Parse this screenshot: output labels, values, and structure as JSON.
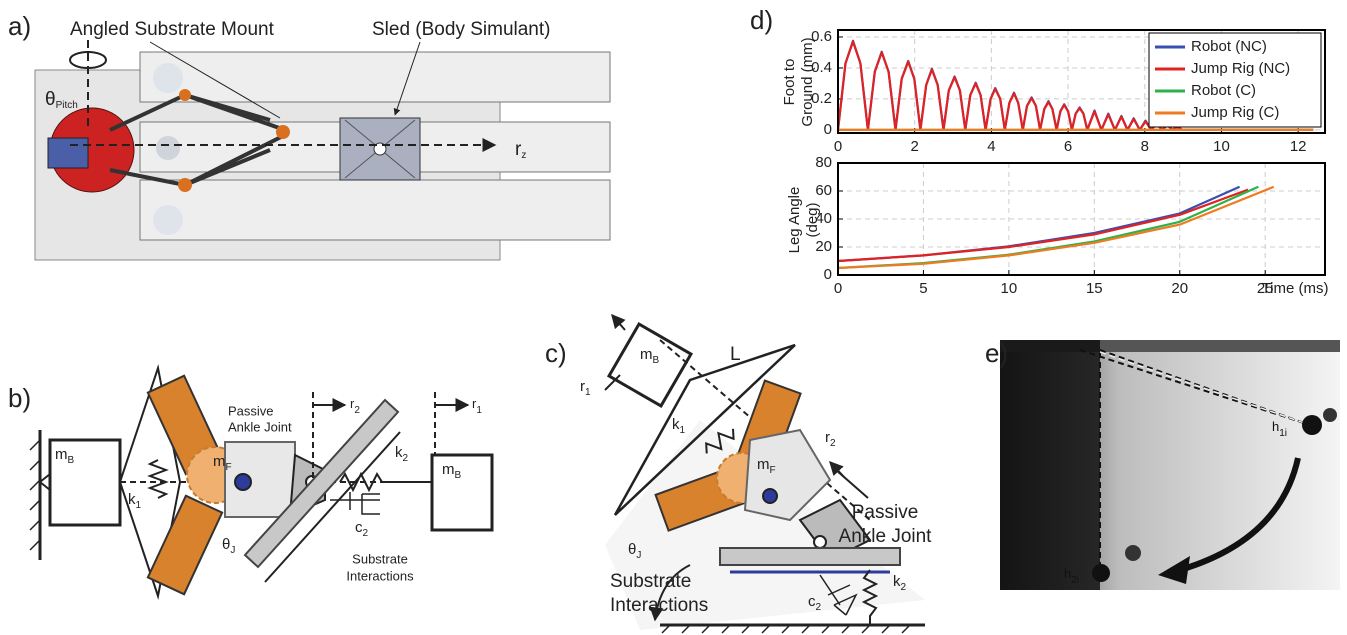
{
  "panels": {
    "a": {
      "label": "a)",
      "mount": "Angled Substrate Mount",
      "sled": "Sled (Body Simulant)",
      "theta": {
        "text": "θ",
        "sub": "Pitch"
      },
      "r": {
        "text": "r",
        "sub": "z"
      }
    },
    "b": {
      "label": "b)",
      "mB_left": {
        "text": "m",
        "sub": "B"
      },
      "k1": {
        "text": "k",
        "sub": "1"
      },
      "mF": {
        "text": "m",
        "sub": "F"
      },
      "ankle": [
        "Passive",
        "Ankle Joint"
      ],
      "r2": {
        "text": "r",
        "sub": "2"
      },
      "r1": {
        "text": "r",
        "sub": "1"
      },
      "k2": {
        "text": "k",
        "sub": "2"
      },
      "c2": {
        "text": "c",
        "sub": "2"
      },
      "mB_right": {
        "text": "m",
        "sub": "B"
      },
      "theta": {
        "text": "θ",
        "sub": "J"
      },
      "substrate": [
        "Substrate",
        "Interactions"
      ]
    },
    "c": {
      "label": "c)",
      "mB": {
        "text": "m",
        "sub": "B"
      },
      "L": "L",
      "r1": {
        "text": "r",
        "sub": "1"
      },
      "k1": {
        "text": "k",
        "sub": "1"
      },
      "mF": {
        "text": "m",
        "sub": "F"
      },
      "r2": {
        "text": "r",
        "sub": "2"
      },
      "ankle": [
        "Passive",
        "Ankle Joint"
      ],
      "theta": {
        "text": "θ",
        "sub": "J"
      },
      "substrate": [
        "Substrate",
        "Interactions"
      ],
      "c2": {
        "text": "c",
        "sub": "2"
      },
      "k2": {
        "text": "k",
        "sub": "2"
      }
    },
    "d": {
      "label": "d)"
    },
    "e": {
      "label": "e)",
      "h1": {
        "text": "h",
        "sub": "1i"
      },
      "h2": {
        "text": "h",
        "sub": "2i"
      }
    }
  },
  "chart_data": [
    {
      "type": "line",
      "y_label": [
        "Foot to",
        "Ground (mm)"
      ],
      "xlim": [
        0,
        12.7
      ],
      "ylim": [
        -0.02,
        0.645
      ],
      "xticks": [
        0,
        2,
        4,
        6,
        8,
        10,
        12
      ],
      "yticks": [
        0,
        0.2,
        0.4,
        0.6
      ],
      "grid": true,
      "legend": "top-right",
      "x": [
        0,
        0.195,
        0.39,
        0.585,
        0.78,
        0.96,
        1.14,
        1.32,
        1.5,
        1.66,
        1.83,
        1.99,
        2.15,
        2.3,
        2.45,
        2.6,
        2.75,
        2.89,
        3.04,
        3.18,
        3.32,
        3.45,
        3.59,
        3.72,
        3.85,
        3.98,
        4.1,
        4.23,
        4.35,
        4.47,
        4.59,
        4.7,
        4.82,
        4.93,
        5.05,
        5.16,
        5.27,
        5.38,
        5.49,
        5.59,
        5.7,
        5.8,
        5.9,
        6.0,
        6.1,
        6.2,
        6.3,
        6.4,
        6.5,
        6.69,
        6.87,
        7.05,
        7.22,
        7.39,
        7.55,
        7.71,
        7.87,
        8.02,
        8.17,
        8.31,
        8.45,
        8.59,
        8.72,
        8.85,
        8.97,
        12.4
      ],
      "series": [
        {
          "name": "Robot (NC)",
          "color": "#3a4fb0",
          "values": [
            0,
            0.43,
            0.575,
            0.43,
            0,
            0.375,
            0.505,
            0.375,
            0,
            0.33,
            0.445,
            0.33,
            0,
            0.29,
            0.395,
            0.29,
            0,
            0.255,
            0.345,
            0.255,
            0,
            0.225,
            0.305,
            0.225,
            0,
            0.2,
            0.27,
            0.2,
            0,
            0.175,
            0.24,
            0.175,
            0,
            0.155,
            0.21,
            0.155,
            0,
            0.135,
            0.185,
            0.135,
            0,
            0.12,
            0.165,
            0.12,
            0,
            0.105,
            0.145,
            0.105,
            0,
            0.125,
            0,
            0.105,
            0,
            0.09,
            0,
            0.075,
            0,
            0.06,
            0,
            0.045,
            0,
            0.035,
            0,
            0.025,
            0,
            0
          ]
        },
        {
          "name": "Jump Rig (NC)",
          "color": "#e02222",
          "values": [
            0,
            0.43,
            0.57,
            0.43,
            0,
            0.375,
            0.5,
            0.375,
            0,
            0.33,
            0.44,
            0.33,
            0,
            0.29,
            0.39,
            0.29,
            0,
            0.255,
            0.34,
            0.255,
            0,
            0.225,
            0.3,
            0.225,
            0,
            0.2,
            0.265,
            0.2,
            0,
            0.175,
            0.235,
            0.175,
            0,
            0.155,
            0.205,
            0.155,
            0,
            0.135,
            0.18,
            0.135,
            0,
            0.12,
            0.16,
            0.12,
            0,
            0.105,
            0.14,
            0.105,
            0,
            0.12,
            0,
            0.1,
            0,
            0.085,
            0,
            0.07,
            0,
            0.055,
            0,
            0.04,
            0,
            0.03,
            0,
            0.02,
            0,
            0
          ]
        },
        {
          "name": "Robot (C)",
          "color": "#2db34a",
          "x": [
            0,
            12.4
          ],
          "values": [
            0,
            0
          ]
        },
        {
          "name": "Jump Rig (C)",
          "color": "#f07a22",
          "x": [
            0,
            12.4
          ],
          "values": [
            0,
            0
          ]
        }
      ]
    },
    {
      "type": "line",
      "y_label": [
        "Leg Angle",
        "(deg)"
      ],
      "x_label": "Time (ms)",
      "xlim": [
        0,
        28.5
      ],
      "ylim": [
        0,
        80
      ],
      "xticks": [
        0,
        5,
        10,
        15,
        20,
        25
      ],
      "yticks": [
        0,
        20,
        40,
        60,
        80
      ],
      "grid": true,
      "series": [
        {
          "name": "Robot (NC)",
          "color": "#3a4fb0",
          "x": [
            0,
            5,
            10,
            15,
            20,
            23.5
          ],
          "values": [
            10,
            14,
            20.5,
            30,
            44,
            63
          ]
        },
        {
          "name": "Jump Rig (NC)",
          "color": "#e02222",
          "x": [
            0,
            5,
            10,
            15,
            20,
            24
          ],
          "values": [
            10,
            14,
            20,
            29,
            43,
            61
          ]
        },
        {
          "name": "Robot (C)",
          "color": "#2db34a",
          "x": [
            0,
            5,
            10,
            15,
            20,
            24.6
          ],
          "values": [
            5,
            8.5,
            14.5,
            24,
            38,
            63
          ]
        },
        {
          "name": "Jump Rig (C)",
          "color": "#f07a22",
          "x": [
            0,
            5,
            10,
            15,
            20,
            25.5
          ],
          "values": [
            5,
            8,
            14,
            23,
            36,
            63
          ]
        }
      ]
    }
  ]
}
